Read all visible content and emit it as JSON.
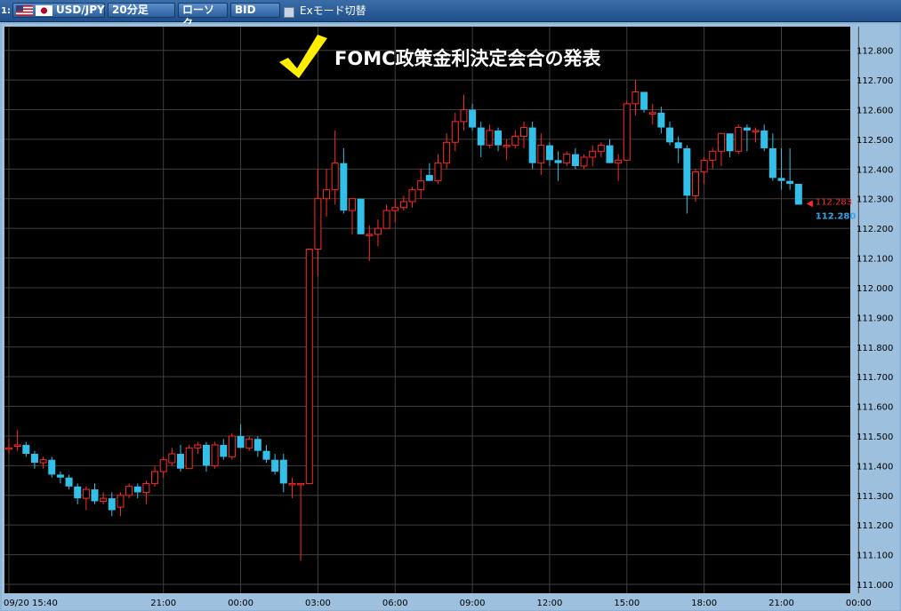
{
  "toolbar": {
    "slot_label": "1:",
    "symbol": "USD/JPY",
    "timeframe": "20分足",
    "chart_style": "ローソク",
    "price_side": "BID",
    "ex_mode_label": "Exモード切替",
    "flag_us_icon": "us-flag-icon",
    "flag_jp_icon": "jp-flag-icon"
  },
  "annotation": {
    "text": "FOMC政策金利決定会合の発表",
    "icon": "checkmark-icon",
    "color": "#ffee00"
  },
  "chart_data": {
    "type": "candlestick",
    "symbol": "USD/JPY",
    "interval": "20分足",
    "ylim": [
      110.97,
      112.88
    ],
    "y_ticks": [
      "112.800",
      "112.700",
      "112.600",
      "112.500",
      "112.400",
      "112.300",
      "112.200",
      "112.100",
      "112.000",
      "111.900",
      "111.800",
      "111.700",
      "111.600",
      "111.500",
      "111.400",
      "111.300",
      "111.200",
      "111.100",
      "111.000"
    ],
    "x_tick_labels": [
      "09/20 15:40",
      "21:00",
      "00:00",
      "03:00",
      "06:00",
      "09:00",
      "12:00",
      "15:00",
      "18:00",
      "21:00",
      "00:00"
    ],
    "x_tick_index": [
      0,
      18,
      27,
      36,
      45,
      54,
      63,
      72,
      81,
      90,
      99
    ],
    "bid_label": "112.283",
    "ask_label": "112.280",
    "bid_value": 112.283,
    "ask_value": 112.28,
    "colors": {
      "up": "#ff2a2a",
      "down": "#33c0e8",
      "background": "#000000",
      "grid": "#404040",
      "bid": "#ff2a2a",
      "ask": "#33a8e8"
    },
    "candles": [
      [
        111.46,
        111.49,
        111.44,
        111.46
      ],
      [
        111.47,
        111.52,
        111.45,
        111.47
      ],
      [
        111.47,
        111.48,
        111.43,
        111.44
      ],
      [
        111.44,
        111.45,
        111.39,
        111.41
      ],
      [
        111.41,
        111.43,
        111.39,
        111.42
      ],
      [
        111.42,
        111.43,
        111.36,
        111.37
      ],
      [
        111.37,
        111.38,
        111.34,
        111.36
      ],
      [
        111.36,
        111.37,
        111.32,
        111.33
      ],
      [
        111.33,
        111.34,
        111.27,
        111.29
      ],
      [
        111.29,
        111.33,
        111.25,
        111.32
      ],
      [
        111.32,
        111.34,
        111.27,
        111.28
      ],
      [
        111.28,
        111.31,
        111.27,
        111.29
      ],
      [
        111.29,
        111.31,
        111.23,
        111.25
      ],
      [
        111.26,
        111.31,
        111.23,
        111.3
      ],
      [
        111.3,
        111.34,
        111.29,
        111.33
      ],
      [
        111.33,
        111.34,
        111.29,
        111.31
      ],
      [
        111.31,
        111.35,
        111.27,
        111.34
      ],
      [
        111.34,
        111.4,
        111.33,
        111.38
      ],
      [
        111.38,
        111.43,
        111.36,
        111.42
      ],
      [
        111.41,
        111.46,
        111.4,
        111.44
      ],
      [
        111.44,
        111.47,
        111.38,
        111.39
      ],
      [
        111.39,
        111.47,
        111.39,
        111.46
      ],
      [
        111.46,
        111.48,
        111.44,
        111.47
      ],
      [
        111.47,
        111.48,
        111.38,
        111.4
      ],
      [
        111.4,
        111.48,
        111.39,
        111.47
      ],
      [
        111.47,
        111.49,
        111.42,
        111.43
      ],
      [
        111.43,
        111.51,
        111.42,
        111.5
      ],
      [
        111.5,
        111.54,
        111.46,
        111.46
      ],
      [
        111.46,
        111.5,
        111.45,
        111.49
      ],
      [
        111.49,
        111.5,
        111.43,
        111.45
      ],
      [
        111.45,
        111.47,
        111.41,
        111.42
      ],
      [
        111.42,
        111.44,
        111.37,
        111.38
      ],
      [
        111.42,
        111.44,
        111.31,
        111.34
      ],
      [
        111.34,
        111.36,
        111.29,
        111.34
      ],
      [
        111.34,
        111.34,
        111.08,
        111.34
      ],
      [
        111.34,
        112.13,
        111.34,
        112.13
      ],
      [
        112.13,
        112.4,
        112.04,
        112.3
      ],
      [
        112.3,
        112.4,
        112.24,
        112.33
      ],
      [
        112.33,
        112.53,
        112.28,
        112.42
      ],
      [
        112.42,
        112.47,
        112.25,
        112.26
      ],
      [
        112.26,
        112.3,
        112.18,
        112.3
      ],
      [
        112.3,
        112.3,
        112.18,
        112.18
      ],
      [
        112.18,
        112.21,
        112.09,
        112.18
      ],
      [
        112.18,
        112.23,
        112.14,
        112.2
      ],
      [
        112.2,
        112.28,
        112.2,
        112.26
      ],
      [
        112.26,
        112.3,
        112.22,
        112.27
      ],
      [
        112.27,
        112.31,
        112.26,
        112.29
      ],
      [
        112.29,
        112.34,
        112.27,
        112.33
      ],
      [
        112.33,
        112.4,
        112.3,
        112.36
      ],
      [
        112.38,
        112.42,
        112.36,
        112.36
      ],
      [
        112.36,
        112.45,
        112.35,
        112.42
      ],
      [
        112.42,
        112.52,
        112.4,
        112.49
      ],
      [
        112.49,
        112.59,
        112.46,
        112.56
      ],
      [
        112.56,
        112.65,
        112.53,
        112.6
      ],
      [
        112.6,
        112.62,
        112.53,
        112.54
      ],
      [
        112.54,
        112.56,
        112.44,
        112.48
      ],
      [
        112.48,
        112.55,
        112.47,
        112.53
      ],
      [
        112.53,
        112.54,
        112.46,
        112.48
      ],
      [
        112.48,
        112.5,
        112.43,
        112.48
      ],
      [
        112.48,
        112.53,
        112.47,
        112.51
      ],
      [
        112.51,
        112.56,
        112.47,
        112.54
      ],
      [
        112.54,
        112.56,
        112.4,
        112.42
      ],
      [
        112.42,
        112.52,
        112.38,
        112.48
      ],
      [
        112.48,
        112.49,
        112.41,
        112.43
      ],
      [
        112.43,
        112.46,
        112.36,
        112.42
      ],
      [
        112.42,
        112.46,
        112.41,
        112.45
      ],
      [
        112.45,
        112.47,
        112.4,
        112.41
      ],
      [
        112.41,
        112.45,
        112.4,
        112.44
      ],
      [
        112.44,
        112.48,
        112.41,
        112.46
      ],
      [
        112.46,
        112.49,
        112.44,
        112.48
      ],
      [
        112.48,
        112.5,
        112.42,
        112.42
      ],
      [
        112.42,
        112.45,
        112.36,
        112.43
      ],
      [
        112.43,
        112.63,
        112.43,
        112.62
      ],
      [
        112.62,
        112.7,
        112.58,
        112.66
      ],
      [
        112.66,
        112.66,
        112.59,
        112.6
      ],
      [
        112.59,
        112.62,
        112.55,
        112.59
      ],
      [
        112.59,
        112.61,
        112.52,
        112.54
      ],
      [
        112.54,
        112.56,
        112.48,
        112.49
      ],
      [
        112.49,
        112.51,
        112.42,
        112.47
      ],
      [
        112.47,
        112.48,
        112.25,
        112.31
      ],
      [
        112.31,
        112.4,
        112.29,
        112.39
      ],
      [
        112.39,
        112.44,
        112.35,
        112.43
      ],
      [
        112.43,
        112.47,
        112.4,
        112.46
      ],
      [
        112.46,
        112.52,
        112.41,
        112.52
      ],
      [
        112.52,
        112.52,
        112.44,
        112.46
      ],
      [
        112.46,
        112.55,
        112.45,
        112.54
      ],
      [
        112.54,
        112.55,
        112.46,
        112.53
      ],
      [
        112.53,
        112.54,
        112.49,
        112.53
      ],
      [
        112.53,
        112.55,
        112.46,
        112.47
      ],
      [
        112.47,
        112.52,
        112.36,
        112.37
      ],
      [
        112.37,
        112.47,
        112.33,
        112.36
      ],
      [
        112.36,
        112.47,
        112.33,
        112.35
      ],
      [
        112.35,
        112.35,
        112.28,
        112.28
      ]
    ]
  }
}
